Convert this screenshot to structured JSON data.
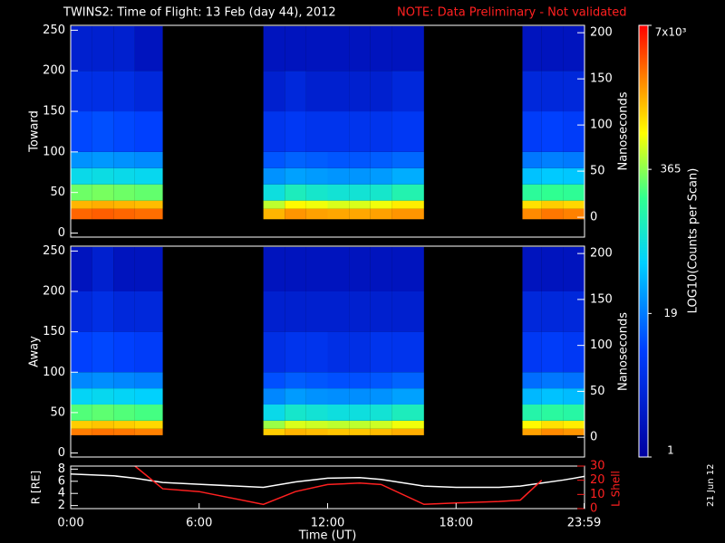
{
  "title": "TWINS2: Time of Flight: 13 Feb (day  44), 2012",
  "note": "NOTE: Data Preliminary - Not validated",
  "date_stamp": "21 Jun 12",
  "colorbar": {
    "label": "LOG10(Counts per Scan)",
    "log_scale": true,
    "lim": [
      1,
      7000
    ],
    "ticks": [
      1,
      19,
      365,
      {
        "value": 7000,
        "label": "7x10³"
      }
    ]
  },
  "chart_data": [
    {
      "type": "heatmap",
      "ylabel": "Toward",
      "y2label": "Nanoseconds",
      "x_bins": [
        0,
        1,
        2,
        3,
        4.3,
        9,
        10,
        11,
        12,
        13,
        14,
        15,
        16.5,
        21.1,
        22,
        23,
        24
      ],
      "y_bins": [
        17,
        30,
        40,
        60,
        80,
        100,
        150,
        200,
        255
      ],
      "values": [
        [
          3000,
          3200,
          3000,
          2800,
          null,
          1500,
          2000,
          1800,
          1700,
          1700,
          1800,
          2000,
          null,
          2200,
          2600,
          2400
        ],
        [
          1500,
          1600,
          1500,
          1400,
          null,
          500,
          800,
          700,
          600,
          600,
          700,
          900,
          null,
          1000,
          1200,
          1100
        ],
        [
          300,
          320,
          300,
          280,
          null,
          80,
          120,
          100,
          90,
          90,
          100,
          140,
          null,
          180,
          200,
          190
        ],
        [
          70,
          75,
          70,
          65,
          null,
          25,
          30,
          28,
          26,
          26,
          28,
          35,
          null,
          45,
          50,
          48
        ],
        [
          25,
          27,
          25,
          23,
          null,
          12,
          14,
          13,
          12,
          12,
          13,
          15,
          null,
          18,
          20,
          19
        ],
        [
          10,
          11,
          10,
          9,
          null,
          6,
          7,
          6,
          6,
          6,
          6,
          7,
          null,
          8,
          9,
          8
        ],
        [
          5,
          5,
          5,
          4,
          null,
          3,
          4,
          3,
          3,
          3,
          3,
          4,
          null,
          4,
          4,
          4
        ],
        [
          3,
          3,
          3,
          2,
          null,
          2,
          2,
          2,
          2,
          2,
          2,
          2,
          null,
          2,
          2,
          2
        ]
      ],
      "xlim": [
        0,
        24
      ],
      "ylim": [
        -5,
        256
      ],
      "yticks": [
        0,
        50,
        100,
        150,
        200,
        250
      ],
      "y2lim": [
        -21.5,
        208
      ],
      "y2ticks": [
        0,
        50,
        100,
        150,
        200
      ]
    },
    {
      "type": "heatmap",
      "ylabel": "Away",
      "y2label": "Nanoseconds",
      "x_bins": [
        0,
        1,
        2,
        3,
        4.3,
        9,
        10,
        11,
        12,
        13,
        14,
        15,
        16.5,
        21.1,
        22,
        23,
        24
      ],
      "y_bins": [
        22,
        30,
        40,
        60,
        80,
        100,
        150,
        200,
        255
      ],
      "values": [
        [
          2500,
          2700,
          2600,
          2400,
          null,
          1200,
          1500,
          1400,
          1300,
          1300,
          1400,
          1600,
          null,
          1800,
          2200,
          2000
        ],
        [
          1200,
          1300,
          1200,
          1100,
          null,
          400,
          600,
          550,
          500,
          500,
          550,
          700,
          null,
          800,
          1000,
          900
        ],
        [
          250,
          270,
          250,
          230,
          null,
          70,
          100,
          90,
          80,
          80,
          90,
          120,
          null,
          150,
          170,
          160
        ],
        [
          60,
          65,
          60,
          55,
          null,
          22,
          28,
          25,
          24,
          24,
          25,
          30,
          null,
          40,
          45,
          42
        ],
        [
          22,
          24,
          22,
          20,
          null,
          11,
          13,
          12,
          11,
          11,
          12,
          14,
          null,
          16,
          18,
          17
        ],
        [
          9,
          10,
          9,
          8,
          null,
          5,
          6,
          6,
          5,
          5,
          6,
          6,
          null,
          7,
          8,
          7
        ],
        [
          4,
          5,
          4,
          4,
          null,
          3,
          3,
          3,
          3,
          3,
          3,
          3,
          null,
          4,
          4,
          4
        ],
        [
          2,
          3,
          2,
          2,
          null,
          2,
          2,
          2,
          2,
          2,
          2,
          2,
          null,
          2,
          2,
          2
        ]
      ],
      "xlim": [
        0,
        24
      ],
      "ylim": [
        -5,
        256
      ],
      "yticks": [
        0,
        50,
        100,
        150,
        200,
        250
      ],
      "y2lim": [
        -21.5,
        208
      ],
      "y2ticks": [
        0,
        50,
        100,
        150,
        200
      ]
    },
    {
      "type": "line",
      "ylabel": "R [RE]",
      "y2label": "L Shell",
      "xlabel": "Time (UT)",
      "x": [
        0,
        2,
        3,
        4.3,
        6,
        9,
        10.5,
        12,
        13.5,
        14.5,
        16.5,
        18,
        20,
        21,
        22,
        23,
        24
      ],
      "series": [
        {
          "name": "R",
          "color": "#ffffff",
          "values": [
            7.2,
            6.9,
            6.5,
            5.8,
            5.5,
            5.0,
            5.9,
            6.5,
            6.6,
            6.3,
            5.2,
            5.0,
            5.0,
            5.2,
            5.7,
            6.2,
            6.8
          ]
        },
        {
          "name": "L Shell",
          "color": "#ff2020",
          "axis": "y2",
          "values": [
            null,
            null,
            30,
            14,
            12,
            3,
            12,
            17,
            18,
            17,
            3,
            4,
            5,
            6,
            20,
            null,
            null
          ]
        }
      ],
      "xlim": [
        0,
        24
      ],
      "xticks": [
        {
          "value": 0,
          "label": "0:00"
        },
        {
          "value": 6,
          "label": "6:00"
        },
        {
          "value": 12,
          "label": "12:00"
        },
        {
          "value": 18,
          "label": "18:00"
        },
        {
          "value": 23.98,
          "label": "23:59"
        }
      ],
      "ylim": [
        1.5,
        8.5
      ],
      "yticks": [
        2,
        4,
        6,
        8
      ],
      "y2lim": [
        0,
        30
      ],
      "y2ticks": [
        0,
        10,
        20,
        30
      ]
    }
  ]
}
